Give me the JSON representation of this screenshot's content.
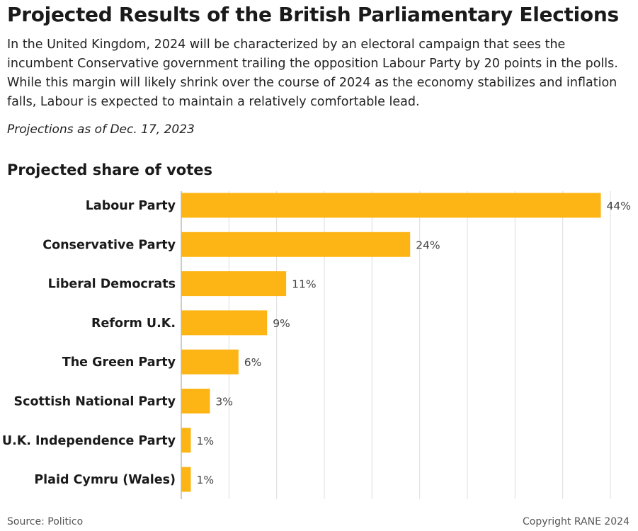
{
  "header": {
    "title": "Projected Results of the British Parliamentary Elections",
    "description": "In the United Kingdom, 2024 will be characterized by an electoral campaign that sees the incumbent Conservative government trailing the opposition Labour Party by 20 points in the polls. While this margin will likely shrink over the course of 2024 as the economy stabilizes and inflation falls, Labour is expected to maintain a relatively comfortable lead.",
    "projection_note": "Projections as of Dec. 17, 2023"
  },
  "footer": {
    "source": "Source: Politico",
    "copyright": "Copyright RANE 2024"
  },
  "colors": {
    "bar": "#FDB515",
    "grid": "#dcdcdc",
    "axis": "#bbbbbb"
  },
  "chart_data": {
    "type": "bar",
    "orientation": "horizontal",
    "title": "Projected share of votes",
    "categories": [
      "Labour Party",
      "Conservative Party",
      "Liberal Democrats",
      "Reform U.K.",
      "The Green Party",
      "Scottish National Party",
      "U.K. Independence Party",
      "Plaid Cymru (Wales)"
    ],
    "values": [
      44,
      24,
      11,
      9,
      6,
      3,
      1,
      1
    ],
    "value_labels": [
      "44%",
      "24%",
      "11%",
      "9%",
      "6%",
      "3%",
      "1%",
      "1%"
    ],
    "xlim": [
      0,
      45
    ],
    "grid": true
  }
}
